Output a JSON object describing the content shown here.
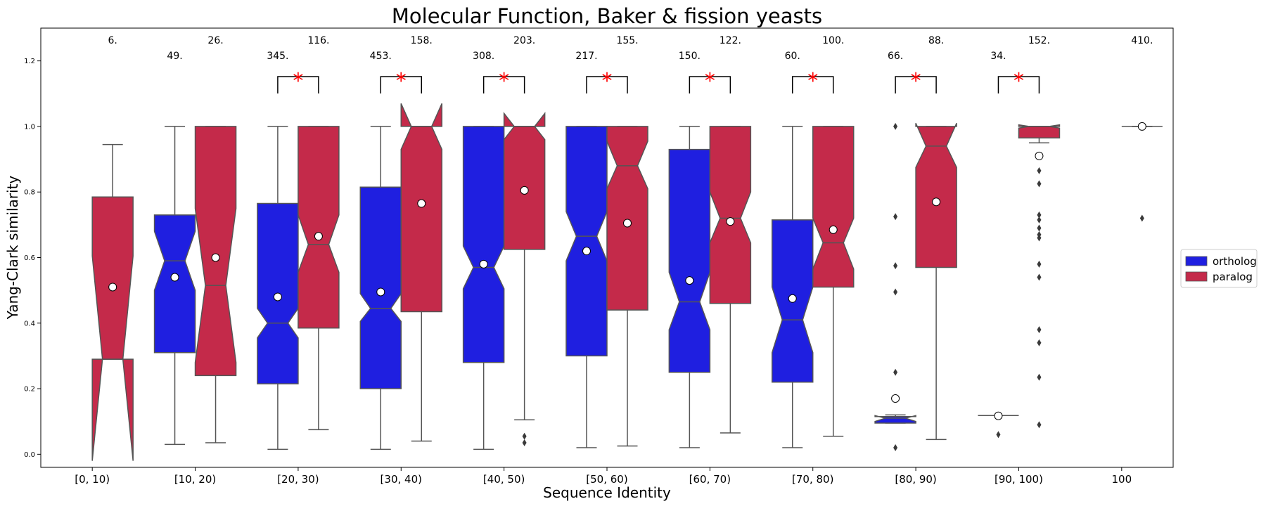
{
  "chart_data": {
    "type": "box",
    "title": "Molecular Function, Baker & fission yeasts",
    "xlabel": "Sequence Identity",
    "ylabel": "Yang-Clark similarity",
    "ylim": [
      -0.04,
      1.3
    ],
    "yticks": [
      "0.0",
      "0.2",
      "0.4",
      "0.6",
      "0.8",
      "1.0",
      "1.2"
    ],
    "categories": [
      "[0, 10)",
      "[10, 20)",
      "[20, 30)",
      "[30, 40)",
      "[40, 50)",
      "[50, 60)",
      "[60, 70)",
      "[70, 80)",
      "[80, 90)",
      "[90, 100)",
      "100"
    ],
    "legend": {
      "position": "right",
      "entries": [
        "ortholog",
        "paralog"
      ]
    },
    "colors": {
      "ortholog": "#1f1fe0",
      "paralog": "#c42a4a",
      "significance": "#ff0000",
      "edge": "#555555"
    },
    "significance_marker": "*",
    "series": [
      {
        "name": "ortholog",
        "boxes": [
          null,
          {
            "count": "49.",
            "whisker_low": 0.03,
            "q1": 0.31,
            "median": 0.59,
            "q3": 0.73,
            "whisker_high": 1.0,
            "notch_low": 0.5,
            "notch_high": 0.68,
            "mean": 0.54,
            "outliers": []
          },
          {
            "count": "345.",
            "whisker_low": 0.015,
            "q1": 0.215,
            "median": 0.4,
            "q3": 0.765,
            "whisker_high": 1.0,
            "notch_low": 0.355,
            "notch_high": 0.445,
            "mean": 0.48,
            "outliers": []
          },
          {
            "count": "453.",
            "whisker_low": 0.015,
            "q1": 0.2,
            "median": 0.445,
            "q3": 0.815,
            "whisker_high": 1.0,
            "notch_low": 0.405,
            "notch_high": 0.49,
            "mean": 0.495,
            "outliers": []
          },
          {
            "count": "308.",
            "whisker_low": 0.015,
            "q1": 0.28,
            "median": 0.57,
            "q3": 1.0,
            "whisker_high": 1.0,
            "notch_low": 0.505,
            "notch_high": 0.635,
            "mean": 0.58,
            "outliers": []
          },
          {
            "count": "217.",
            "whisker_low": 0.02,
            "q1": 0.3,
            "median": 0.665,
            "q3": 1.0,
            "whisker_high": 1.0,
            "notch_low": 0.59,
            "notch_high": 0.74,
            "mean": 0.62,
            "outliers": []
          },
          {
            "count": "150.",
            "whisker_low": 0.02,
            "q1": 0.25,
            "median": 0.465,
            "q3": 0.93,
            "whisker_high": 1.0,
            "notch_low": 0.38,
            "notch_high": 0.555,
            "mean": 0.53,
            "outliers": []
          },
          {
            "count": "60.",
            "whisker_low": 0.02,
            "q1": 0.22,
            "median": 0.41,
            "q3": 0.715,
            "whisker_high": 1.0,
            "notch_low": 0.31,
            "notch_high": 0.51,
            "mean": 0.475,
            "outliers": []
          },
          {
            "count": "66.",
            "whisker_low": 0.095,
            "q1": 0.095,
            "median": 0.11,
            "q3": 0.115,
            "whisker_high": 0.12,
            "notch_low": 0.1,
            "notch_high": 0.118,
            "mean": 0.17,
            "outliers": [
              1.0,
              0.725,
              0.575,
              0.495,
              0.25,
              0.02
            ]
          },
          {
            "count": "34.",
            "whisker_low": 0.118,
            "q1": 0.118,
            "median": 0.118,
            "q3": 0.118,
            "whisker_high": 0.118,
            "notch_low": 0.118,
            "notch_high": 0.118,
            "mean": 0.117,
            "outliers": [
              0.06
            ]
          },
          null
        ]
      },
      {
        "name": "paralog",
        "boxes": [
          {
            "count": "6.",
            "whisker_low": 0.29,
            "q1": 0.29,
            "median": 0.29,
            "q3": 0.785,
            "whisker_high": 0.945,
            "notch_low": -0.02,
            "notch_high": 0.605,
            "mean": 0.51,
            "outliers": []
          },
          {
            "count": "26.",
            "whisker_low": 0.035,
            "q1": 0.24,
            "median": 0.515,
            "q3": 1.0,
            "whisker_high": 1.0,
            "notch_low": 0.28,
            "notch_high": 0.75,
            "mean": 0.6,
            "outliers": []
          },
          {
            "count": "116.",
            "whisker_low": 0.075,
            "q1": 0.385,
            "median": 0.64,
            "q3": 1.0,
            "whisker_high": 1.0,
            "notch_low": 0.555,
            "notch_high": 0.73,
            "mean": 0.665,
            "outliers": []
          },
          {
            "count": "158.",
            "whisker_low": 0.04,
            "q1": 0.435,
            "median": 1.0,
            "q3": 1.0,
            "whisker_high": 1.0,
            "notch_low": 0.93,
            "notch_high": 1.07,
            "mean": 0.765,
            "outliers": []
          },
          {
            "count": "203.",
            "whisker_low": 0.105,
            "q1": 0.625,
            "median": 1.0,
            "q3": 1.0,
            "whisker_high": 1.0,
            "notch_low": 0.96,
            "notch_high": 1.04,
            "mean": 0.805,
            "outliers": [
              0.055,
              0.035
            ]
          },
          {
            "count": "155.",
            "whisker_low": 0.025,
            "q1": 0.44,
            "median": 0.88,
            "q3": 1.0,
            "whisker_high": 1.0,
            "notch_low": 0.81,
            "notch_high": 0.955,
            "mean": 0.705,
            "outliers": []
          },
          {
            "count": "122.",
            "whisker_low": 0.065,
            "q1": 0.46,
            "median": 0.72,
            "q3": 1.0,
            "whisker_high": 1.0,
            "notch_low": 0.645,
            "notch_high": 0.8,
            "mean": 0.71,
            "outliers": []
          },
          {
            "count": "100.",
            "whisker_low": 0.055,
            "q1": 0.51,
            "median": 0.645,
            "q3": 1.0,
            "whisker_high": 1.0,
            "notch_low": 0.565,
            "notch_high": 0.72,
            "mean": 0.685,
            "outliers": []
          },
          {
            "count": "88.",
            "whisker_low": 0.045,
            "q1": 0.57,
            "median": 0.94,
            "q3": 1.0,
            "whisker_high": 1.0,
            "notch_low": 0.875,
            "notch_high": 1.01,
            "mean": 0.77,
            "outliers": []
          },
          {
            "count": "152.",
            "whisker_low": 0.95,
            "q1": 0.965,
            "median": 1.0,
            "q3": 1.0,
            "whisker_high": 1.0,
            "notch_low": 0.995,
            "notch_high": 1.005,
            "mean": 0.91,
            "outliers": [
              0.865,
              0.825,
              0.73,
              0.715,
              0.69,
              0.67,
              0.66,
              0.58,
              0.54,
              0.38,
              0.34,
              0.235,
              0.09
            ]
          },
          {
            "count": "410.",
            "whisker_low": 1.0,
            "q1": 1.0,
            "median": 1.0,
            "q3": 1.0,
            "whisker_high": 1.0,
            "notch_low": 1.0,
            "notch_high": 1.0,
            "mean": 1.0,
            "outliers": [
              0.72
            ]
          }
        ]
      }
    ],
    "significant_groups": [
      "[20, 30)",
      "[30, 40)",
      "[40, 50)",
      "[50, 60)",
      "[60, 70)",
      "[70, 80)",
      "[80, 90)",
      "[90, 100)"
    ]
  }
}
